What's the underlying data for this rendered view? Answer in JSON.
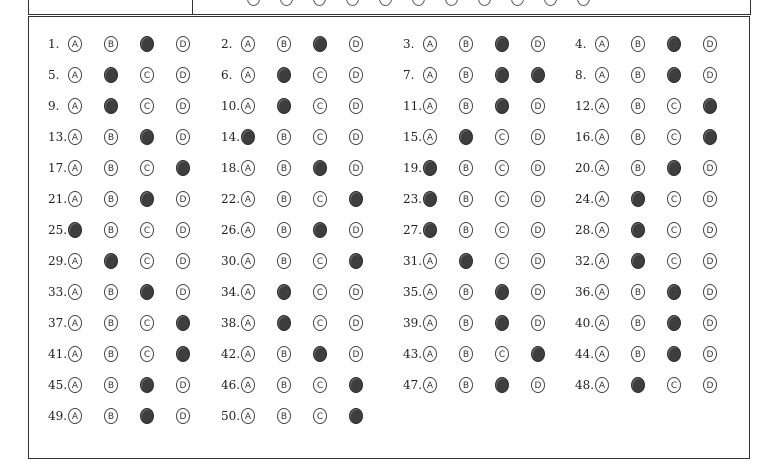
{
  "options": [
    "A",
    "B",
    "C",
    "D"
  ],
  "questions": [
    {
      "n": "1.",
      "fill": "C"
    },
    {
      "n": "2.",
      "fill": "C"
    },
    {
      "n": "3.",
      "fill": "C"
    },
    {
      "n": "4.",
      "fill": "C"
    },
    {
      "n": "5.",
      "fill": "B"
    },
    {
      "n": "6.",
      "fill": "B"
    },
    {
      "n": "7.",
      "fill": "CD"
    },
    {
      "n": "8.",
      "fill": "C"
    },
    {
      "n": "9.",
      "fill": "B"
    },
    {
      "n": "10.",
      "fill": "B"
    },
    {
      "n": "11.",
      "fill": "C"
    },
    {
      "n": "12.",
      "fill": "D"
    },
    {
      "n": "13.",
      "fill": "C"
    },
    {
      "n": "14.",
      "fill": "A"
    },
    {
      "n": "15.",
      "fill": "B"
    },
    {
      "n": "16.",
      "fill": "D"
    },
    {
      "n": "17.",
      "fill": "D"
    },
    {
      "n": "18.",
      "fill": "C"
    },
    {
      "n": "19.",
      "fill": "A"
    },
    {
      "n": "20.",
      "fill": "C"
    },
    {
      "n": "21.",
      "fill": "C"
    },
    {
      "n": "22.",
      "fill": "D"
    },
    {
      "n": "23.",
      "fill": "A"
    },
    {
      "n": "24.",
      "fill": "B"
    },
    {
      "n": "25.",
      "fill": "A"
    },
    {
      "n": "26.",
      "fill": "C"
    },
    {
      "n": "27.",
      "fill": "A"
    },
    {
      "n": "28.",
      "fill": "B"
    },
    {
      "n": "29.",
      "fill": "B"
    },
    {
      "n": "30.",
      "fill": "D"
    },
    {
      "n": "31.",
      "fill": "B"
    },
    {
      "n": "32.",
      "fill": "B"
    },
    {
      "n": "33.",
      "fill": "C"
    },
    {
      "n": "34.",
      "fill": "B"
    },
    {
      "n": "35.",
      "fill": "C"
    },
    {
      "n": "36.",
      "fill": "C"
    },
    {
      "n": "37.",
      "fill": "D"
    },
    {
      "n": "38.",
      "fill": "B"
    },
    {
      "n": "39.",
      "fill": "C"
    },
    {
      "n": "40.",
      "fill": "C"
    },
    {
      "n": "41.",
      "fill": "D"
    },
    {
      "n": "42.",
      "fill": "C"
    },
    {
      "n": "43.",
      "fill": "D"
    },
    {
      "n": "44.",
      "fill": "C"
    },
    {
      "n": "45.",
      "fill": "C"
    },
    {
      "n": "46.",
      "fill": "D"
    },
    {
      "n": "47.",
      "fill": "C"
    },
    {
      "n": "48.",
      "fill": "B"
    },
    {
      "n": "49.",
      "fill": "C"
    },
    {
      "n": "50.",
      "fill": "D"
    }
  ]
}
